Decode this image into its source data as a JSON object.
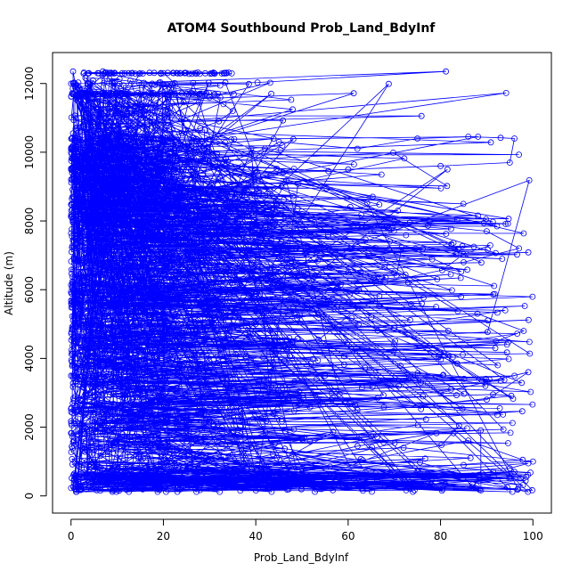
{
  "chart_data": {
    "type": "line",
    "title": "ATOM4 Southbound Prob_Land_BdyInf",
    "xlabel": "Prob_Land_BdyInf",
    "ylabel": "Altitude (m)",
    "xlim": [
      -4,
      104
    ],
    "ylim": [
      -500,
      12900
    ],
    "x_ticks": [
      0,
      20,
      40,
      60,
      80,
      100
    ],
    "x_tick_labels": [
      "0",
      "20",
      "40",
      "60",
      "80",
      "100"
    ],
    "y_ticks": [
      0,
      2000,
      4000,
      6000,
      8000,
      10000,
      12000
    ],
    "y_tick_labels": [
      "0",
      "2000",
      "4000",
      "6000",
      "8000",
      "10000",
      "12000"
    ],
    "grid": false,
    "legend": "none",
    "marker": "open-circle",
    "line_style": "solid line connecting consecutive points",
    "series_color": "#0000ff",
    "point_count_estimate": 2500,
    "series": [
      {
        "name": "",
        "x": [
          0.5,
          1,
          2,
          1.5,
          3,
          4,
          6,
          5,
          8,
          10,
          12,
          15,
          18,
          20,
          25,
          30,
          33,
          35,
          32,
          28,
          24,
          20,
          15,
          10,
          5,
          2,
          1,
          0.5,
          3,
          7,
          12,
          18,
          30,
          45,
          62,
          75,
          86,
          93,
          96,
          95,
          80,
          60,
          40,
          20,
          8,
          2,
          1,
          4,
          10,
          25,
          50,
          70,
          90,
          97,
          85,
          60,
          35,
          15,
          5,
          1,
          3,
          15,
          40,
          65,
          88,
          98,
          92,
          70,
          45,
          22,
          8,
          2,
          1,
          6,
          20,
          55,
          80,
          99,
          90,
          62,
          30,
          10,
          3,
          1,
          8,
          35,
          72,
          100,
          85,
          50,
          20,
          6,
          1,
          2,
          12,
          45,
          78,
          96,
          70,
          38,
          14,
          4,
          1,
          5,
          30,
          65,
          95,
          99,
          75,
          40,
          12,
          2
        ],
        "y": [
          12000,
          11950,
          11800,
          11500,
          11300,
          11000,
          10800,
          10600,
          10500,
          10400,
          11700,
          12300,
          12310,
          12300,
          11700,
          11600,
          11400,
          11200,
          10900,
          10700,
          10550,
          10400,
          10200,
          10100,
          10000,
          9900,
          9600,
          9300,
          9100,
          8800,
          8600,
          8500,
          9000,
          10300,
          10100,
          10400,
          10450,
          10420,
          10400,
          9700,
          9600,
          9500,
          9400,
          9200,
          9000,
          8700,
          8400,
          8100,
          7900,
          8000,
          8200,
          8000,
          7700,
          7200,
          6800,
          6500,
          6200,
          6000,
          5800,
          5500,
          5200,
          5100,
          5000,
          5200,
          5300,
          4800,
          4500,
          4400,
          4300,
          4200,
          4000,
          3800,
          3500,
          3200,
          3400,
          3500,
          3000,
          3600,
          2800,
          2500,
          2200,
          2000,
          1800,
          1500,
          1300,
          1200,
          1400,
          1000,
          900,
          800,
          700,
          600,
          500,
          200,
          180,
          300,
          500,
          700,
          600,
          500,
          400,
          300,
          200,
          250,
          400,
          600,
          800,
          950,
          700,
          500,
          300,
          180
        ]
      }
    ]
  }
}
